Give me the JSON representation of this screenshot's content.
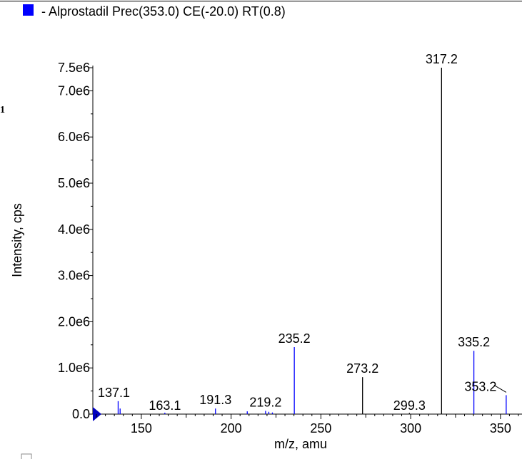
{
  "colors": {
    "accent": "#0000ff",
    "line": "#000000"
  },
  "legend": {
    "text": "- Alprostadil Prec(353.0) CE(-20.0) RT(0.8)"
  },
  "stray_mark": "1",
  "chart_data": {
    "type": "bar",
    "series_name": "Alprostadil Prec(353.0) CE(-20.0) RT(0.8)",
    "xlabel": "m/z, amu",
    "ylabel": "Intensity, cps",
    "xlim": [
      123,
      362
    ],
    "ylim": [
      0,
      7500000
    ],
    "x_ticks": [
      150,
      200,
      250,
      300,
      350
    ],
    "x_tick_labels": [
      "150",
      "200",
      "250",
      "300",
      "350"
    ],
    "y_ticks": [
      0,
      1000000,
      2000000,
      3000000,
      4000000,
      5000000,
      6000000,
      7000000,
      7500000
    ],
    "y_tick_labels": [
      "0.0",
      "1.0e6",
      "2.0e6",
      "3.0e6",
      "4.0e6",
      "5.0e6",
      "6.0e6",
      "7.0e6",
      "7.5e6"
    ],
    "peaks": [
      {
        "x": 137.1,
        "y": 280000,
        "label": "137.1",
        "color": "#0000ff"
      },
      {
        "x": 138.2,
        "y": 120000,
        "label": "",
        "color": "#0000ff"
      },
      {
        "x": 163.1,
        "y": 30000,
        "label": "163.1",
        "color": "#0000ff"
      },
      {
        "x": 191.3,
        "y": 120000,
        "label": "191.3",
        "color": "#0000ff"
      },
      {
        "x": 209.0,
        "y": 60000,
        "label": "",
        "color": "#0000ff"
      },
      {
        "x": 219.2,
        "y": 70000,
        "label": "219.2",
        "color": "#0000ff"
      },
      {
        "x": 221.0,
        "y": 50000,
        "label": "",
        "color": "#0000ff"
      },
      {
        "x": 223.0,
        "y": 35000,
        "label": "",
        "color": "#0000ff"
      },
      {
        "x": 235.2,
        "y": 1450000,
        "label": "235.2",
        "color": "#0000ff"
      },
      {
        "x": 273.2,
        "y": 800000,
        "label": "273.2",
        "color": "#000000"
      },
      {
        "x": 299.3,
        "y": 25000,
        "label": "299.3",
        "color": "#000000"
      },
      {
        "x": 317.2,
        "y": 7500000,
        "label": "317.2",
        "color": "#000000"
      },
      {
        "x": 335.2,
        "y": 1370000,
        "label": "335.2",
        "color": "#0000ff"
      },
      {
        "x": 353.2,
        "y": 410000,
        "label": "353.2",
        "color": "#0000ff"
      }
    ]
  }
}
